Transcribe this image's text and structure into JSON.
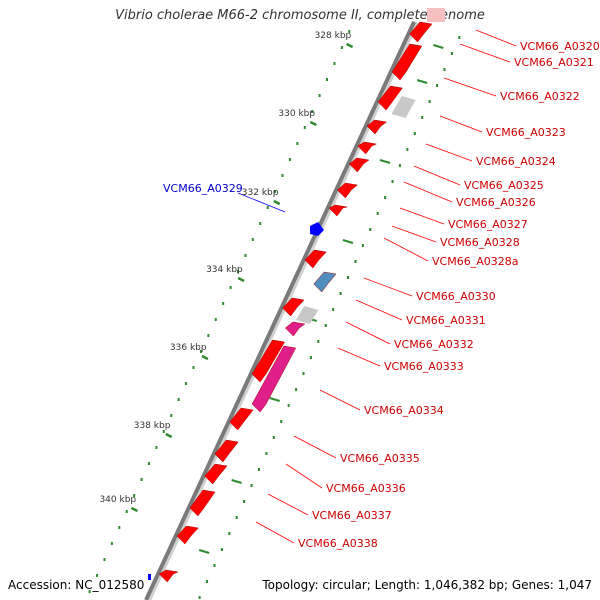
{
  "title": "Vibrio cholerae M66-2 chromosome II, complete genome",
  "footer": {
    "accession": "Accession: NC_012580",
    "summary": "Topology: circular; Length: 1,046,382 bp; Genes: 1,047"
  },
  "colors": {
    "forward_gene": "#ff0000",
    "reverse_gene": "#ff0000",
    "pseudo_gene": "#c8c8c8",
    "rna_gene": "#4f8fc0",
    "other_gene": "#e0208a",
    "hypothetical_gene": "#0000ff",
    "backbone": "#8a8a8a",
    "tick": "#2e8b2e",
    "forward_label": "#cc0000",
    "reverse_label": "#0000cc"
  },
  "scale_labels": [
    "328 kbp",
    "330 kbp",
    "332 kbp",
    "334 kbp",
    "336 kbp",
    "338 kbp",
    "340 kbp"
  ],
  "forward_genes": [
    "VCM66_A0320",
    "VCM66_A0321",
    "VCM66_A0322",
    "VCM66_A0323",
    "VCM66_A0324",
    "VCM66_A0325",
    "VCM66_A0326",
    "VCM66_A0327",
    "VCM66_A0328",
    "VCM66_A0328a",
    "VCM66_A0330",
    "VCM66_A0331",
    "VCM66_A0332",
    "VCM66_A0333",
    "VCM66_A0334",
    "VCM66_A0335",
    "VCM66_A0336",
    "VCM66_A0337",
    "VCM66_A0338"
  ],
  "reverse_genes": [
    "VCM66_A0329"
  ]
}
